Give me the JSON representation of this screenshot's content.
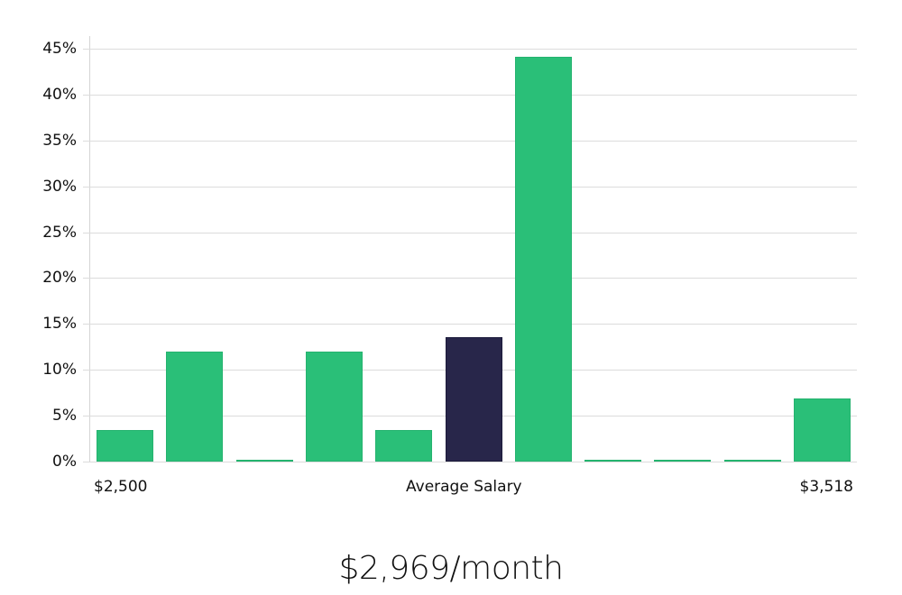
{
  "chart_data": {
    "type": "bar",
    "title": "",
    "xlabel": "Average Salary",
    "ylabel": "",
    "x_range_labels": {
      "min": "$2,500",
      "max": "$3,518"
    },
    "y_ticks": [
      "0%",
      "5%",
      "10%",
      "15%",
      "20%",
      "25%",
      "30%",
      "35%",
      "40%",
      "45%"
    ],
    "ylim": [
      0,
      45
    ],
    "grid": true,
    "legend": null,
    "categories": [
      "bin1",
      "bin2",
      "bin3",
      "bin4",
      "bin5",
      "bin6",
      "bin7",
      "bin8",
      "bin9",
      "bin10",
      "bin11"
    ],
    "values": [
      3.4,
      12.0,
      0.0,
      12.0,
      3.4,
      13.6,
      44.1,
      0.0,
      0.0,
      0.0,
      6.9
    ],
    "highlighted_index": 5,
    "colors": {
      "bar": "#2abf78",
      "highlight": "#28264a",
      "grid": "#dcdcdc"
    }
  },
  "labels": {
    "x_min": "$2,500",
    "x_center": "Average Salary",
    "x_max": "$3,518",
    "summary": "$2,969/month"
  }
}
